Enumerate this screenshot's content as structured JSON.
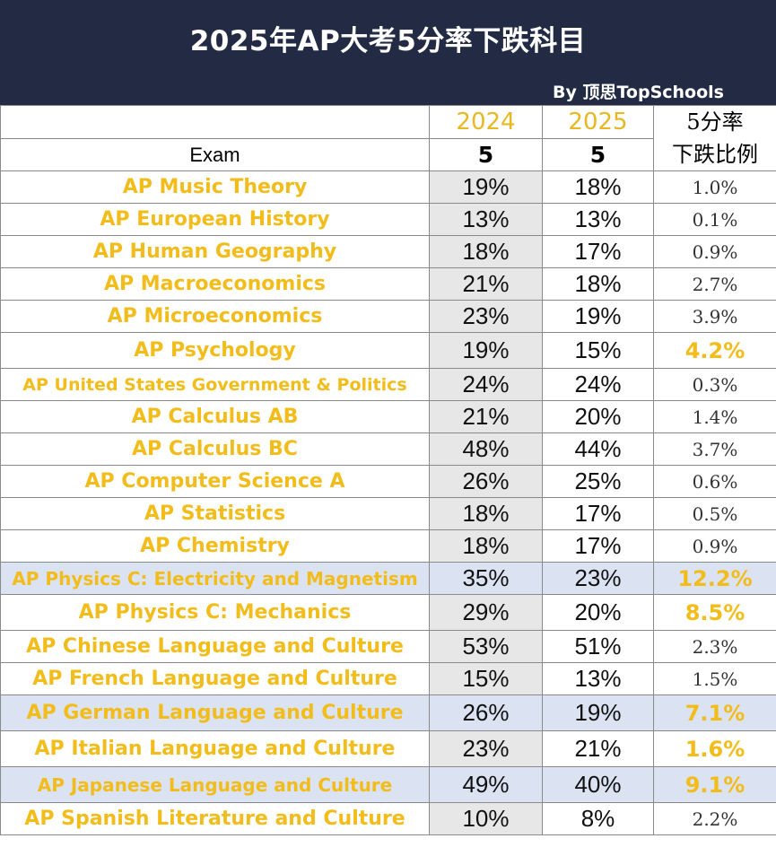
{
  "banner": {
    "title": "2025年AP大考5分率下跌科目",
    "byline": "By  顶思TopSchools"
  },
  "header": {
    "exam": "Exam",
    "year_2024": "2024",
    "year_2025": "2025",
    "score_2024": "5",
    "score_2025": "5",
    "drop_line1": "5分率",
    "drop_line2": "下跌比例"
  },
  "colors": {
    "banner": "#222b43",
    "exam_text": "#f2bd1b",
    "highlight_row": "#dbe2f1",
    "gray_cell": "#e7e7e7"
  },
  "chart_data": {
    "type": "table",
    "title": "2025年AP大考5分率下跌科目",
    "columns": [
      "Exam",
      "2024 5",
      "2025 5",
      "5分率下跌比例"
    ],
    "rows": [
      {
        "exam": "AP Music Theory",
        "y2024": "19%",
        "y2025": "18%",
        "drop": "1.0%",
        "highlight": false
      },
      {
        "exam": "AP European History",
        "y2024": "13%",
        "y2025": "13%",
        "drop": "0.1%",
        "highlight": false
      },
      {
        "exam": "AP Human Geography",
        "y2024": "18%",
        "y2025": "17%",
        "drop": "0.9%",
        "highlight": false
      },
      {
        "exam": "AP Macroeconomics",
        "y2024": "21%",
        "y2025": "18%",
        "drop": "2.7%",
        "highlight": false
      },
      {
        "exam": "AP Microeconomics",
        "y2024": "23%",
        "y2025": "19%",
        "drop": "3.9%",
        "highlight": false
      },
      {
        "exam": "AP Psychology",
        "y2024": "19%",
        "y2025": "15%",
        "drop": "4.2%",
        "highlight": true
      },
      {
        "exam": "AP United States Government & Politics",
        "y2024": "24%",
        "y2025": "24%",
        "drop": "0.3%",
        "highlight": false
      },
      {
        "exam": "AP Calculus AB",
        "y2024": "21%",
        "y2025": "20%",
        "drop": "1.4%",
        "highlight": false
      },
      {
        "exam": "AP Calculus BC",
        "y2024": "48%",
        "y2025": "44%",
        "drop": "3.7%",
        "highlight": false
      },
      {
        "exam": "AP Computer Science A",
        "y2024": "26%",
        "y2025": "25%",
        "drop": "0.6%",
        "highlight": false
      },
      {
        "exam": "AP Statistics",
        "y2024": "18%",
        "y2025": "17%",
        "drop": "0.5%",
        "highlight": false
      },
      {
        "exam": "AP Chemistry",
        "y2024": "18%",
        "y2025": "17%",
        "drop": "0.9%",
        "highlight": false
      },
      {
        "exam": "AP Physics C: Electricity and Magnetism",
        "y2024": "35%",
        "y2025": "23%",
        "drop": "12.2%",
        "highlight": true,
        "blue": true
      },
      {
        "exam": "AP Physics C: Mechanics",
        "y2024": "29%",
        "y2025": "20%",
        "drop": "8.5%",
        "highlight": true
      },
      {
        "exam": "AP Chinese Language and Culture",
        "y2024": "53%",
        "y2025": "51%",
        "drop": "2.3%",
        "highlight": false
      },
      {
        "exam": "AP French Language and Culture",
        "y2024": "15%",
        "y2025": "13%",
        "drop": "1.5%",
        "highlight": false
      },
      {
        "exam": "AP German Language and Culture",
        "y2024": "26%",
        "y2025": "19%",
        "drop": "7.1%",
        "highlight": true,
        "blue": true
      },
      {
        "exam": "AP Italian Language and Culture",
        "y2024": "23%",
        "y2025": "21%",
        "drop": "1.6%",
        "highlight": true
      },
      {
        "exam": "AP Japanese Language and Culture",
        "y2024": "49%",
        "y2025": "40%",
        "drop": "9.1%",
        "highlight": true,
        "blue": true
      },
      {
        "exam": "AP Spanish Literature and Culture",
        "y2024": "10%",
        "y2025": "8%",
        "drop": "2.2%",
        "highlight": false
      }
    ]
  }
}
